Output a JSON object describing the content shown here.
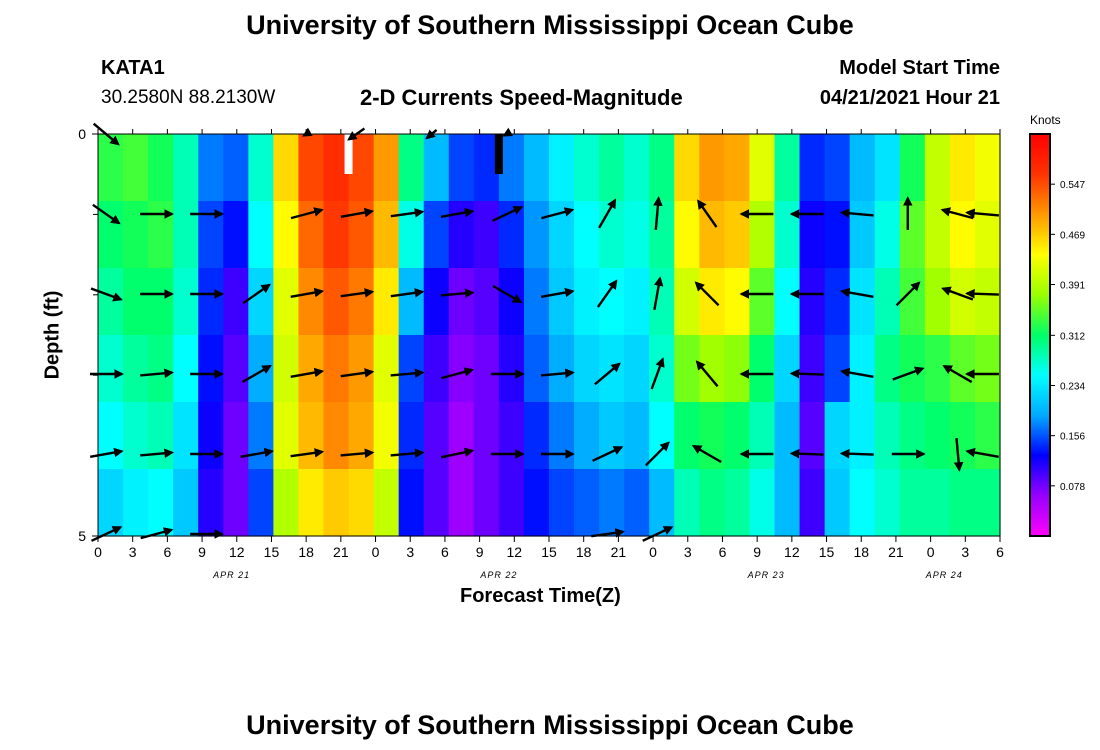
{
  "header": {
    "title_top": "University of Southern Mississippi Ocean Cube",
    "title_bottom": "University of Southern Mississippi Ocean Cube",
    "station_id": "KATA1",
    "coords": "30.2580N  88.2130W",
    "subtitle": "2-D Currents Speed-Magnitude",
    "model_start_label": "Model Start Time",
    "model_start_value": "04/21/2021 Hour 21"
  },
  "chart_data": {
    "type": "heatmap",
    "title": "2-D Currents Speed-Magnitude",
    "xlabel": "Forecast Time(Z)",
    "ylabel": "Depth (ft)",
    "ylim": [
      0,
      5
    ],
    "y_ticks": [
      "0",
      "5"
    ],
    "x_hours_total": 81,
    "x_tick_labels": [
      "0",
      "3",
      "6",
      "9",
      "12",
      "15",
      "18",
      "21",
      "0",
      "3",
      "6",
      "9",
      "12",
      "15",
      "18",
      "21",
      "0",
      "3",
      "6",
      "9",
      "12",
      "15",
      "18",
      "21",
      "0",
      "3",
      "6"
    ],
    "dates": [
      {
        "label": "APR 21",
        "hour": 12
      },
      {
        "label": "APR 22",
        "hour": 36
      },
      {
        "label": "APR 23",
        "hour": 60
      },
      {
        "label": "APR 24",
        "hour": 76
      }
    ],
    "colorbar": {
      "unit": "Knots",
      "ticks": [
        "0.547",
        "0.469",
        "0.391",
        "0.312",
        "0.234",
        "0.156",
        "0.078"
      ],
      "tick_values": [
        0.547,
        0.469,
        0.391,
        0.312,
        0.234,
        0.156,
        0.078
      ],
      "min": 0.0,
      "max": 0.625,
      "colors": [
        "#ff00ff",
        "#9900ff",
        "#0000ff",
        "#00aaff",
        "#00ffff",
        "#00ff66",
        "#99ff00",
        "#ffff00",
        "#ff9900",
        "#ff3300",
        "#ff0000"
      ]
    },
    "column_speeds": [
      [
        0.33,
        0.31,
        0.29,
        0.27,
        0.25,
        0.22
      ],
      [
        0.34,
        0.32,
        0.31,
        0.29,
        0.27,
        0.24
      ],
      [
        0.32,
        0.33,
        0.31,
        0.3,
        0.28,
        0.25
      ],
      [
        0.28,
        0.28,
        0.27,
        0.25,
        0.23,
        0.21
      ],
      [
        0.17,
        0.15,
        0.14,
        0.13,
        0.12,
        0.11
      ],
      [
        0.16,
        0.13,
        0.1,
        0.09,
        0.08,
        0.08
      ],
      [
        0.27,
        0.25,
        0.22,
        0.19,
        0.17,
        0.15
      ],
      [
        0.46,
        0.44,
        0.42,
        0.41,
        0.42,
        0.39
      ],
      [
        0.55,
        0.53,
        0.51,
        0.49,
        0.48,
        0.45
      ],
      [
        0.57,
        0.56,
        0.54,
        0.52,
        0.51,
        0.47
      ],
      [
        0.55,
        0.54,
        0.52,
        0.5,
        0.49,
        0.46
      ],
      [
        0.5,
        0.48,
        0.45,
        0.42,
        0.43,
        0.4
      ],
      [
        0.3,
        0.26,
        0.2,
        0.15,
        0.14,
        0.13
      ],
      [
        0.2,
        0.15,
        0.12,
        0.1,
        0.09,
        0.09
      ],
      [
        0.15,
        0.11,
        0.08,
        0.07,
        0.06,
        0.06
      ],
      [
        0.14,
        0.1,
        0.09,
        0.08,
        0.08,
        0.08
      ],
      [
        0.17,
        0.14,
        0.12,
        0.11,
        0.1,
        0.1
      ],
      [
        0.2,
        0.18,
        0.17,
        0.16,
        0.14,
        0.13
      ],
      [
        0.24,
        0.22,
        0.21,
        0.19,
        0.17,
        0.15
      ],
      [
        0.27,
        0.25,
        0.24,
        0.22,
        0.19,
        0.16
      ],
      [
        0.29,
        0.27,
        0.25,
        0.23,
        0.21,
        0.17
      ],
      [
        0.27,
        0.26,
        0.24,
        0.22,
        0.2,
        0.16
      ],
      [
        0.3,
        0.29,
        0.28,
        0.27,
        0.25,
        0.2
      ],
      [
        0.46,
        0.44,
        0.41,
        0.36,
        0.31,
        0.28
      ],
      [
        0.5,
        0.48,
        0.45,
        0.38,
        0.32,
        0.3
      ],
      [
        0.49,
        0.47,
        0.44,
        0.37,
        0.31,
        0.29
      ],
      [
        0.42,
        0.39,
        0.35,
        0.31,
        0.28,
        0.26
      ],
      [
        0.29,
        0.27,
        0.25,
        0.22,
        0.2,
        0.2
      ],
      [
        0.14,
        0.12,
        0.11,
        0.1,
        0.09,
        0.1
      ],
      [
        0.15,
        0.13,
        0.14,
        0.15,
        0.22,
        0.21
      ],
      [
        0.2,
        0.21,
        0.23,
        0.24,
        0.24,
        0.25
      ],
      [
        0.23,
        0.26,
        0.28,
        0.3,
        0.28,
        0.27
      ],
      [
        0.32,
        0.35,
        0.34,
        0.32,
        0.3,
        0.29
      ],
      [
        0.4,
        0.4,
        0.38,
        0.33,
        0.31,
        0.29
      ],
      [
        0.45,
        0.44,
        0.41,
        0.35,
        0.32,
        0.3
      ],
      [
        0.43,
        0.42,
        0.4,
        0.36,
        0.33,
        0.3
      ]
    ],
    "vectors": [
      [
        [
          0.5,
          -40
        ],
        [
          0,
          0
        ],
        [
          0,
          0
        ],
        [
          0,
          0
        ],
        [
          0,
          0
        ],
        [
          0,
          0
        ],
        [
          0,
          0
        ],
        [
          0,
          0
        ],
        [
          -0.1,
          30
        ],
        [
          0,
          0
        ],
        [
          -0.3,
          35
        ],
        [
          0,
          0
        ],
        [
          0,
          0
        ],
        [
          -0.2,
          40
        ],
        [
          0,
          0
        ],
        [
          0,
          0
        ],
        [
          -0.1,
          30
        ],
        [
          0,
          0
        ],
        [
          0,
          0
        ],
        [
          0,
          0
        ],
        [
          0,
          0
        ],
        [
          0,
          0
        ],
        [
          0,
          0
        ],
        [
          0,
          0
        ],
        [
          0,
          0
        ],
        [
          0,
          0
        ],
        [
          0,
          0
        ],
        [
          0,
          0
        ],
        [
          0,
          0
        ],
        [
          0,
          0
        ],
        [
          0,
          0
        ],
        [
          0,
          0
        ],
        [
          0,
          0
        ],
        [
          0,
          0
        ],
        [
          0,
          0
        ],
        [
          0,
          0
        ]
      ],
      [
        [
          0.5,
          -35
        ],
        [
          0,
          0
        ],
        [
          0.5,
          0
        ],
        [
          0,
          0
        ],
        [
          0.5,
          0
        ],
        [
          0,
          0
        ],
        [
          0,
          0
        ],
        [
          0,
          0
        ],
        [
          0.5,
          15
        ],
        [
          0,
          0
        ],
        [
          0.5,
          10
        ],
        [
          0,
          0
        ],
        [
          0.5,
          8
        ],
        [
          0,
          0
        ],
        [
          0.5,
          10
        ],
        [
          0,
          0
        ],
        [
          0.5,
          25
        ],
        [
          0,
          0
        ],
        [
          0.5,
          15
        ],
        [
          0,
          0
        ],
        [
          0.5,
          60
        ],
        [
          0,
          0
        ],
        [
          0.5,
          85
        ],
        [
          0,
          0
        ],
        [
          0.5,
          125
        ],
        [
          0,
          0
        ],
        [
          0.5,
          180
        ],
        [
          0,
          0
        ],
        [
          0.5,
          180
        ],
        [
          0,
          0
        ],
        [
          0.5,
          175
        ],
        [
          0,
          0
        ],
        [
          0.5,
          90
        ],
        [
          0,
          0
        ],
        [
          0.5,
          165
        ],
        [
          0.5,
          175
        ]
      ],
      [
        [
          0.5,
          -20
        ],
        [
          0,
          0
        ],
        [
          0.5,
          0
        ],
        [
          0,
          0
        ],
        [
          0.5,
          0
        ],
        [
          0,
          0
        ],
        [
          0.5,
          35
        ],
        [
          0,
          0
        ],
        [
          0.5,
          10
        ],
        [
          0,
          0
        ],
        [
          0.5,
          8
        ],
        [
          0,
          0
        ],
        [
          0.5,
          8
        ],
        [
          0,
          0
        ],
        [
          0.5,
          5
        ],
        [
          0,
          0
        ],
        [
          0.5,
          -30
        ],
        [
          0,
          0
        ],
        [
          0.5,
          10
        ],
        [
          0,
          0
        ],
        [
          0.5,
          55
        ],
        [
          0,
          0
        ],
        [
          0.5,
          80
        ],
        [
          0,
          0
        ],
        [
          0.5,
          135
        ],
        [
          0,
          0
        ],
        [
          0.5,
          180
        ],
        [
          0,
          0
        ],
        [
          0.5,
          180
        ],
        [
          0,
          0
        ],
        [
          0.5,
          170
        ],
        [
          0,
          0
        ],
        [
          0.5,
          45
        ],
        [
          0,
          0
        ],
        [
          0.5,
          160
        ],
        [
          0.5,
          178
        ]
      ],
      [
        [
          0.5,
          0
        ],
        [
          0,
          0
        ],
        [
          0.5,
          5
        ],
        [
          0,
          0
        ],
        [
          0.5,
          0
        ],
        [
          0,
          0
        ],
        [
          0.5,
          30
        ],
        [
          0,
          0
        ],
        [
          0.5,
          10
        ],
        [
          0,
          0
        ],
        [
          0.5,
          8
        ],
        [
          0,
          0
        ],
        [
          0.5,
          5
        ],
        [
          0,
          0
        ],
        [
          0.5,
          15
        ],
        [
          0,
          0
        ],
        [
          0.5,
          0
        ],
        [
          0,
          0
        ],
        [
          0.5,
          5
        ],
        [
          0,
          0
        ],
        [
          0.5,
          40
        ],
        [
          0,
          0
        ],
        [
          0.5,
          70
        ],
        [
          0,
          0
        ],
        [
          0.5,
          130
        ],
        [
          0,
          0
        ],
        [
          0.5,
          180
        ],
        [
          0,
          0
        ],
        [
          0.5,
          178
        ],
        [
          0,
          0
        ],
        [
          0.5,
          170
        ],
        [
          0,
          0
        ],
        [
          0.5,
          20
        ],
        [
          0,
          0
        ],
        [
          0.5,
          150
        ],
        [
          0.5,
          180
        ]
      ],
      [
        [
          0.5,
          10
        ],
        [
          0,
          0
        ],
        [
          0.5,
          5
        ],
        [
          0,
          0
        ],
        [
          0.5,
          0
        ],
        [
          0,
          0
        ],
        [
          0.5,
          10
        ],
        [
          0,
          0
        ],
        [
          0.5,
          8
        ],
        [
          0,
          0
        ],
        [
          0.5,
          5
        ],
        [
          0,
          0
        ],
        [
          0.5,
          5
        ],
        [
          0,
          0
        ],
        [
          0.5,
          12
        ],
        [
          0,
          0
        ],
        [
          0.5,
          0
        ],
        [
          0,
          0
        ],
        [
          0.5,
          0
        ],
        [
          0,
          0
        ],
        [
          0.5,
          25
        ],
        [
          0,
          0
        ],
        [
          0.5,
          45
        ],
        [
          0,
          0
        ],
        [
          0.5,
          150
        ],
        [
          0,
          0
        ],
        [
          0.5,
          180
        ],
        [
          0,
          0
        ],
        [
          0.5,
          178
        ],
        [
          0,
          0
        ],
        [
          0.5,
          178
        ],
        [
          0,
          0
        ],
        [
          0.5,
          0
        ],
        [
          0,
          0
        ],
        [
          0.5,
          -85
        ],
        [
          0.5,
          170
        ]
      ],
      [
        [
          0.5,
          25
        ],
        [
          0,
          0
        ],
        [
          0.5,
          15
        ],
        [
          0,
          0
        ],
        [
          0.5,
          0
        ],
        [
          0,
          0
        ],
        [
          0,
          0
        ],
        [
          0,
          0
        ],
        [
          0,
          0
        ],
        [
          0,
          0
        ],
        [
          0,
          0
        ],
        [
          0,
          0
        ],
        [
          0,
          0
        ],
        [
          0,
          0
        ],
        [
          0,
          0
        ],
        [
          0,
          0
        ],
        [
          0,
          0
        ],
        [
          0,
          0
        ],
        [
          0,
          0
        ],
        [
          0,
          0
        ],
        [
          0.5,
          8
        ],
        [
          0,
          0
        ],
        [
          0.5,
          25
        ],
        [
          0,
          0
        ],
        [
          0,
          0
        ],
        [
          0,
          0
        ],
        [
          0,
          0
        ],
        [
          0,
          0
        ],
        [
          0,
          0
        ],
        [
          0,
          0
        ],
        [
          0,
          0
        ],
        [
          0,
          0
        ],
        [
          0,
          0
        ],
        [
          0,
          0
        ],
        [
          0,
          0
        ],
        [
          0,
          0
        ]
      ]
    ]
  }
}
